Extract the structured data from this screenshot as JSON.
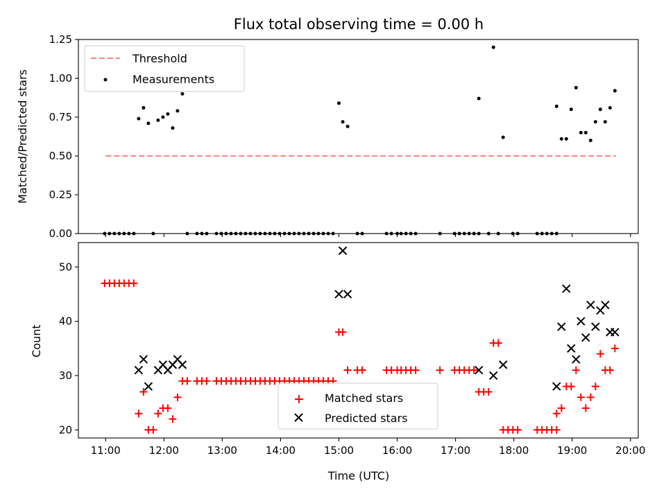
{
  "chart_data": [
    {
      "type": "scatter",
      "title": "Flux total observing time = 0.00 h",
      "xlabel": "",
      "ylabel": "Matched/Predicted stars",
      "xlim": [
        "10:32",
        "20:08"
      ],
      "ylim": [
        0,
        1.25
      ],
      "yticks": [
        "0.00",
        "0.25",
        "0.50",
        "0.75",
        "1.00",
        "1.25"
      ],
      "x_tick_labels_shown": false,
      "grid": false,
      "legend_position": "top-left",
      "series": [
        {
          "name": "Threshold",
          "style": "dashed-line",
          "color": "#ff8080",
          "x": [
            "11:00",
            "19:45"
          ],
          "y": [
            0.5,
            0.5
          ]
        },
        {
          "name": "Measurements",
          "style": "dots",
          "color": "#000000",
          "points": [
            [
              "10:59",
              0
            ],
            [
              "11:04",
              0
            ],
            [
              "11:09",
              0
            ],
            [
              "11:14",
              0
            ],
            [
              "11:19",
              0
            ],
            [
              "11:24",
              0
            ],
            [
              "11:29",
              0
            ],
            [
              "11:34",
              0.74
            ],
            [
              "11:39",
              0.81
            ],
            [
              "11:44",
              0.71
            ],
            [
              "11:54",
              0.73
            ],
            [
              "11:59",
              0.75
            ],
            [
              "12:04",
              0.77
            ],
            [
              "12:09",
              0.68
            ],
            [
              "12:14",
              0.79
            ],
            [
              "12:19",
              0.9
            ],
            [
              "11:49",
              0
            ],
            [
              "12:24",
              0
            ],
            [
              "12:34",
              0
            ],
            [
              "12:39",
              0
            ],
            [
              "12:44",
              0
            ],
            [
              "12:54",
              0
            ],
            [
              "12:59",
              0
            ],
            [
              "13:04",
              0
            ],
            [
              "13:09",
              0
            ],
            [
              "13:14",
              0
            ],
            [
              "13:19",
              0
            ],
            [
              "13:24",
              0
            ],
            [
              "13:29",
              0
            ],
            [
              "13:34",
              0
            ],
            [
              "13:39",
              0
            ],
            [
              "13:44",
              0
            ],
            [
              "13:49",
              0
            ],
            [
              "13:54",
              0
            ],
            [
              "13:59",
              0
            ],
            [
              "14:04",
              0
            ],
            [
              "14:09",
              0
            ],
            [
              "14:14",
              0
            ],
            [
              "14:19",
              0
            ],
            [
              "14:24",
              0
            ],
            [
              "14:29",
              0
            ],
            [
              "14:34",
              0
            ],
            [
              "14:39",
              0
            ],
            [
              "14:44",
              0
            ],
            [
              "14:49",
              0
            ],
            [
              "14:54",
              0
            ],
            [
              "15:00",
              0.84
            ],
            [
              "15:04",
              0.72
            ],
            [
              "15:09",
              0.69
            ],
            [
              "15:19",
              0
            ],
            [
              "15:24",
              0
            ],
            [
              "15:49",
              0
            ],
            [
              "15:54",
              0
            ],
            [
              "16:00",
              0
            ],
            [
              "16:04",
              0
            ],
            [
              "16:09",
              0
            ],
            [
              "16:14",
              0
            ],
            [
              "16:19",
              0
            ],
            [
              "16:44",
              0
            ],
            [
              "16:59",
              0
            ],
            [
              "17:04",
              0
            ],
            [
              "17:09",
              0
            ],
            [
              "17:14",
              0
            ],
            [
              "17:19",
              0
            ],
            [
              "17:24",
              0
            ],
            [
              "17:24",
              0.87
            ],
            [
              "17:39",
              1.2
            ],
            [
              "17:49",
              0.62
            ],
            [
              "17:34",
              0
            ],
            [
              "17:44",
              0
            ],
            [
              "17:59",
              0
            ],
            [
              "18:04",
              0
            ],
            [
              "18:24",
              0
            ],
            [
              "18:29",
              0
            ],
            [
              "18:34",
              0
            ],
            [
              "18:39",
              0
            ],
            [
              "18:44",
              0
            ],
            [
              "18:44",
              0.82
            ],
            [
              "18:49",
              0.61
            ],
            [
              "18:54",
              0.61
            ],
            [
              "18:59",
              0.8
            ],
            [
              "19:04",
              0.94
            ],
            [
              "19:09",
              0.65
            ],
            [
              "19:14",
              0.65
            ],
            [
              "19:19",
              0.6
            ],
            [
              "19:24",
              0.72
            ],
            [
              "19:29",
              0.8
            ],
            [
              "19:34",
              0.72
            ],
            [
              "19:39",
              0.81
            ],
            [
              "19:44",
              0.92
            ]
          ]
        }
      ]
    },
    {
      "type": "scatter",
      "title": "",
      "xlabel": "Time (UTC)",
      "ylabel": "Count",
      "xlim": [
        "10:32",
        "20:08"
      ],
      "ylim": [
        18.5,
        54.5
      ],
      "xticks": [
        "11:00",
        "12:00",
        "13:00",
        "14:00",
        "15:00",
        "16:00",
        "17:00",
        "18:00",
        "19:00",
        "20:00"
      ],
      "yticks": [
        "20",
        "30",
        "40",
        "50"
      ],
      "grid": false,
      "legend_position": "bottom-center",
      "series": [
        {
          "name": "Matched stars",
          "marker": "+",
          "color": "#ff0000",
          "points": [
            [
              "10:59",
              47
            ],
            [
              "11:04",
              47
            ],
            [
              "11:09",
              47
            ],
            [
              "11:14",
              47
            ],
            [
              "11:19",
              47
            ],
            [
              "11:24",
              47
            ],
            [
              "11:29",
              47
            ],
            [
              "11:34",
              23
            ],
            [
              "11:39",
              27
            ],
            [
              "11:44",
              20
            ],
            [
              "11:49",
              20
            ],
            [
              "11:54",
              23
            ],
            [
              "11:59",
              24
            ],
            [
              "12:04",
              24
            ],
            [
              "12:09",
              22
            ],
            [
              "12:14",
              26
            ],
            [
              "12:19",
              29
            ],
            [
              "12:24",
              29
            ],
            [
              "12:34",
              29
            ],
            [
              "12:39",
              29
            ],
            [
              "12:44",
              29
            ],
            [
              "12:54",
              29
            ],
            [
              "12:59",
              29
            ],
            [
              "13:04",
              29
            ],
            [
              "13:09",
              29
            ],
            [
              "13:14",
              29
            ],
            [
              "13:19",
              29
            ],
            [
              "13:24",
              29
            ],
            [
              "13:29",
              29
            ],
            [
              "13:34",
              29
            ],
            [
              "13:39",
              29
            ],
            [
              "13:44",
              29
            ],
            [
              "13:49",
              29
            ],
            [
              "13:54",
              29
            ],
            [
              "13:59",
              29
            ],
            [
              "14:04",
              29
            ],
            [
              "14:09",
              29
            ],
            [
              "14:14",
              29
            ],
            [
              "14:19",
              29
            ],
            [
              "14:24",
              29
            ],
            [
              "14:29",
              29
            ],
            [
              "14:34",
              29
            ],
            [
              "14:39",
              29
            ],
            [
              "14:44",
              29
            ],
            [
              "14:49",
              29
            ],
            [
              "14:54",
              29
            ],
            [
              "15:00",
              38
            ],
            [
              "15:04",
              38
            ],
            [
              "15:09",
              31
            ],
            [
              "15:19",
              31
            ],
            [
              "15:24",
              31
            ],
            [
              "15:49",
              31
            ],
            [
              "15:54",
              31
            ],
            [
              "16:00",
              31
            ],
            [
              "16:04",
              31
            ],
            [
              "16:09",
              31
            ],
            [
              "16:14",
              31
            ],
            [
              "16:19",
              31
            ],
            [
              "16:44",
              31
            ],
            [
              "16:59",
              31
            ],
            [
              "17:04",
              31
            ],
            [
              "17:09",
              31
            ],
            [
              "17:14",
              31
            ],
            [
              "17:19",
              31
            ],
            [
              "17:24",
              27
            ],
            [
              "17:29",
              27
            ],
            [
              "17:34",
              27
            ],
            [
              "17:39",
              36
            ],
            [
              "17:44",
              36
            ],
            [
              "17:49",
              20
            ],
            [
              "17:54",
              20
            ],
            [
              "17:59",
              20
            ],
            [
              "18:04",
              20
            ],
            [
              "18:24",
              20
            ],
            [
              "18:29",
              20
            ],
            [
              "18:34",
              20
            ],
            [
              "18:39",
              20
            ],
            [
              "18:44",
              20
            ],
            [
              "18:44",
              23
            ],
            [
              "18:49",
              24
            ],
            [
              "18:54",
              28
            ],
            [
              "18:59",
              28
            ],
            [
              "19:04",
              31
            ],
            [
              "19:09",
              26
            ],
            [
              "19:14",
              24
            ],
            [
              "19:19",
              26
            ],
            [
              "19:24",
              28
            ],
            [
              "19:29",
              34
            ],
            [
              "19:34",
              31
            ],
            [
              "19:39",
              31
            ],
            [
              "19:44",
              35
            ]
          ]
        },
        {
          "name": "Predicted stars",
          "marker": "x",
          "color": "#000000",
          "points": [
            [
              "11:34",
              31
            ],
            [
              "11:39",
              33
            ],
            [
              "11:44",
              28
            ],
            [
              "11:54",
              31
            ],
            [
              "11:59",
              32
            ],
            [
              "12:04",
              31
            ],
            [
              "12:09",
              32
            ],
            [
              "12:14",
              33
            ],
            [
              "12:19",
              32
            ],
            [
              "15:00",
              45
            ],
            [
              "15:04",
              53
            ],
            [
              "15:09",
              45
            ],
            [
              "17:24",
              31
            ],
            [
              "17:39",
              30
            ],
            [
              "17:49",
              32
            ],
            [
              "18:44",
              28
            ],
            [
              "18:49",
              39
            ],
            [
              "18:54",
              46
            ],
            [
              "18:59",
              35
            ],
            [
              "19:04",
              33
            ],
            [
              "19:09",
              40
            ],
            [
              "19:14",
              37
            ],
            [
              "19:19",
              43
            ],
            [
              "19:24",
              39
            ],
            [
              "19:29",
              42
            ],
            [
              "19:34",
              43
            ],
            [
              "19:39",
              38
            ],
            [
              "19:44",
              38
            ]
          ]
        }
      ]
    }
  ]
}
